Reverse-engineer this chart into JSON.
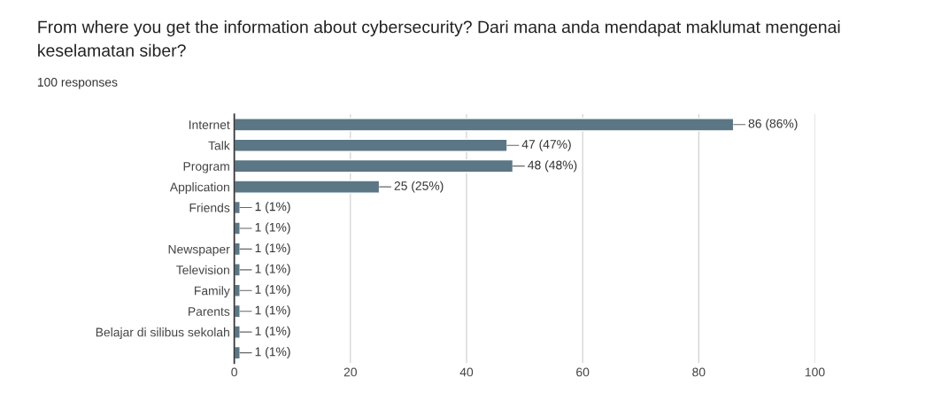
{
  "chart_data": {
    "type": "bar",
    "orientation": "horizontal",
    "title": "From where you get the information about cybersecurity? Dari mana anda mendapat maklumat mengenai keselamatan siber?",
    "subtitle": "100 responses",
    "categories": [
      "Internet",
      "Talk",
      "Program",
      "Application",
      "Friends",
      null,
      "Newspaper",
      "Television",
      "Family",
      "Parents",
      "Belajar di silibus sekolah",
      null
    ],
    "values": [
      86,
      47,
      48,
      25,
      1,
      1,
      1,
      1,
      1,
      1,
      1,
      1
    ],
    "value_labels": [
      "86 (86%)",
      "47 (47%)",
      "48 (48%)",
      "25 (25%)",
      "1 (1%)",
      "1 (1%)",
      "1 (1%)",
      "1 (1%)",
      "1 (1%)",
      "1 (1%)",
      "1 (1%)",
      "1 (1%)"
    ],
    "color": "#5b7684",
    "xlim": [
      0,
      100
    ],
    "xticks": [
      0,
      20,
      40,
      60,
      80,
      100
    ],
    "grid": "x",
    "legend": false
  }
}
